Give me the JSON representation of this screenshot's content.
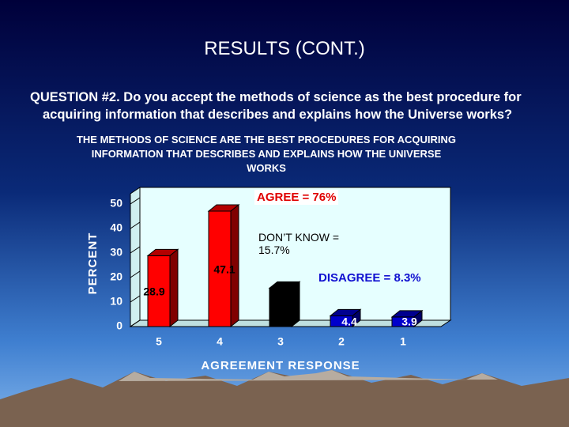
{
  "slide_title": "RESULTS (CONT.)",
  "question": "QUESTION #2.  Do you accept the methods of science as the best procedure for acquiring information that describes and explains how the Universe works?",
  "chart_data": {
    "type": "bar3d",
    "title": "THE METHODS OF SCIENCE ARE THE BEST PROCEDURES FOR ACQUIRING INFORMATION THAT DESCRIBES AND EXPLAINS HOW THE UNIVERSE WORKS",
    "y_label": "PERCENT",
    "x_label": "AGREEMENT RESPONSE",
    "categories": [
      "5",
      "4",
      "3",
      "2",
      "1"
    ],
    "values": [
      28.9,
      47.1,
      15.7,
      4.4,
      3.9
    ],
    "colors": [
      "#ff0000",
      "#ff0000",
      "#000000",
      "#0000cc",
      "#0000cc"
    ],
    "ylim": [
      0,
      55
    ],
    "yticks": [
      0,
      10,
      20,
      30,
      40,
      50
    ],
    "annotations": [
      "AGREE = 76%",
      "DON’T KNOW = 15.7%",
      "DISAGREE = 8.3%"
    ]
  }
}
